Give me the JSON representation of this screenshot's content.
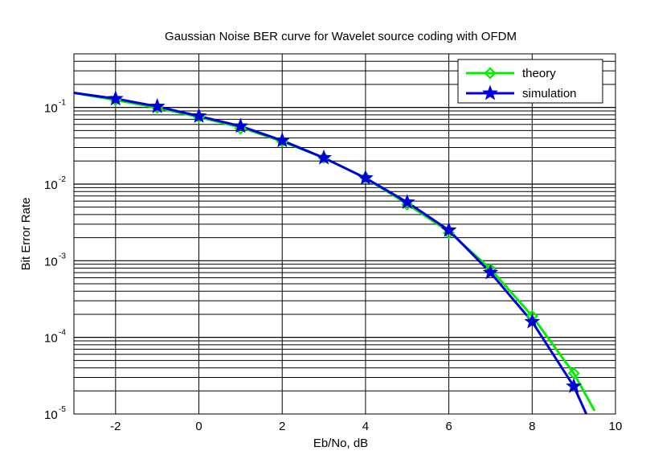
{
  "chart_data": {
    "type": "line",
    "title": "Gaussian Noise BER curve for Wavelet source coding with OFDM",
    "xlabel": "Eb/No, dB",
    "ylabel": "Bit Error Rate",
    "xlim": [
      -3,
      10
    ],
    "ylim": [
      1e-05,
      0.5
    ],
    "yscale": "log",
    "grid": true,
    "legend_position": "top-right",
    "x_ticks": [
      {
        "value": -2,
        "label": "-2"
      },
      {
        "value": 0,
        "label": "0"
      },
      {
        "value": 2,
        "label": "2"
      },
      {
        "value": 4,
        "label": "4"
      },
      {
        "value": 6,
        "label": "6"
      },
      {
        "value": 8,
        "label": "8"
      },
      {
        "value": 10,
        "label": "10"
      }
    ],
    "y_ticks": [
      {
        "value": 0.1,
        "base": "10",
        "exp": "-1"
      },
      {
        "value": 0.01,
        "base": "10",
        "exp": "-2"
      },
      {
        "value": 0.001,
        "base": "10",
        "exp": "-3"
      },
      {
        "value": 0.0001,
        "base": "10",
        "exp": "-4"
      },
      {
        "value": 1e-05,
        "base": "10",
        "exp": "-5"
      }
    ],
    "series": [
      {
        "name": "theory",
        "color": "#00ee00",
        "marker": "diamond",
        "line_x": [
          -3,
          -2,
          -1,
          0,
          1,
          2,
          3,
          4,
          5,
          6,
          7,
          8,
          9,
          9.5
        ],
        "line_y": [
          0.155,
          0.125,
          0.099,
          0.075,
          0.055,
          0.036,
          0.022,
          0.012,
          0.0055,
          0.0024,
          0.00078,
          0.00019,
          3.4e-05,
          1.1e-05
        ],
        "marker_x": [
          -2,
          -1,
          0,
          1,
          2,
          3,
          4,
          5,
          6,
          7,
          8,
          9
        ],
        "marker_y": [
          0.125,
          0.099,
          0.075,
          0.053,
          0.036,
          0.022,
          0.0122,
          0.0054,
          0.0023,
          0.00078,
          0.00019,
          3.4e-05
        ]
      },
      {
        "name": "simulation",
        "color": "#0000dd",
        "marker": "star",
        "line_x": [
          -3,
          -2,
          -1,
          0,
          1,
          2,
          3,
          4,
          5,
          6,
          7,
          8,
          9,
          9.3
        ],
        "line_y": [
          0.155,
          0.13,
          0.103,
          0.077,
          0.057,
          0.037,
          0.022,
          0.012,
          0.0058,
          0.0025,
          0.0007,
          0.00016,
          2.3e-05,
          1e-05
        ],
        "marker_x": [
          -2,
          -1,
          0,
          1,
          2,
          3,
          4,
          5,
          6,
          7,
          8,
          9
        ],
        "marker_y": [
          0.13,
          0.103,
          0.077,
          0.057,
          0.037,
          0.022,
          0.012,
          0.0058,
          0.0025,
          0.0007,
          0.00016,
          2.3e-05
        ]
      }
    ]
  }
}
